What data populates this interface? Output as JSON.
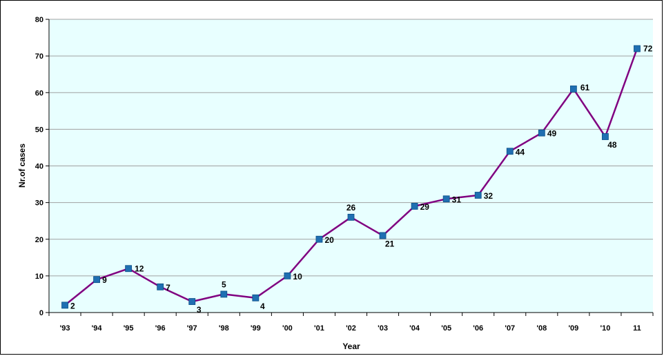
{
  "chart_data": {
    "type": "line",
    "title": "",
    "xlabel": "Year",
    "ylabel": "Nr.of cases",
    "categories": [
      "'93",
      "'94",
      "'95",
      "'96",
      "'97",
      "'98",
      "'99",
      "'00",
      "'01",
      "'02",
      "'03",
      "'04",
      "'05",
      "'06",
      "'07",
      "'08",
      "'09",
      "'10",
      "11"
    ],
    "series": [
      {
        "values": [
          2,
          9,
          12,
          7,
          3,
          5,
          4,
          10,
          20,
          26,
          21,
          29,
          31,
          32,
          44,
          49,
          61,
          48,
          72
        ]
      }
    ],
    "ylim": [
      0,
      80
    ],
    "yticks": [
      0,
      10,
      20,
      30,
      40,
      50,
      60,
      70,
      80
    ],
    "grid": true,
    "legend": "none",
    "colors": {
      "plot_background": "#e8ffff",
      "line": "#800080",
      "marker": "#1f6fb2",
      "grid": "#a0a0a0"
    }
  }
}
